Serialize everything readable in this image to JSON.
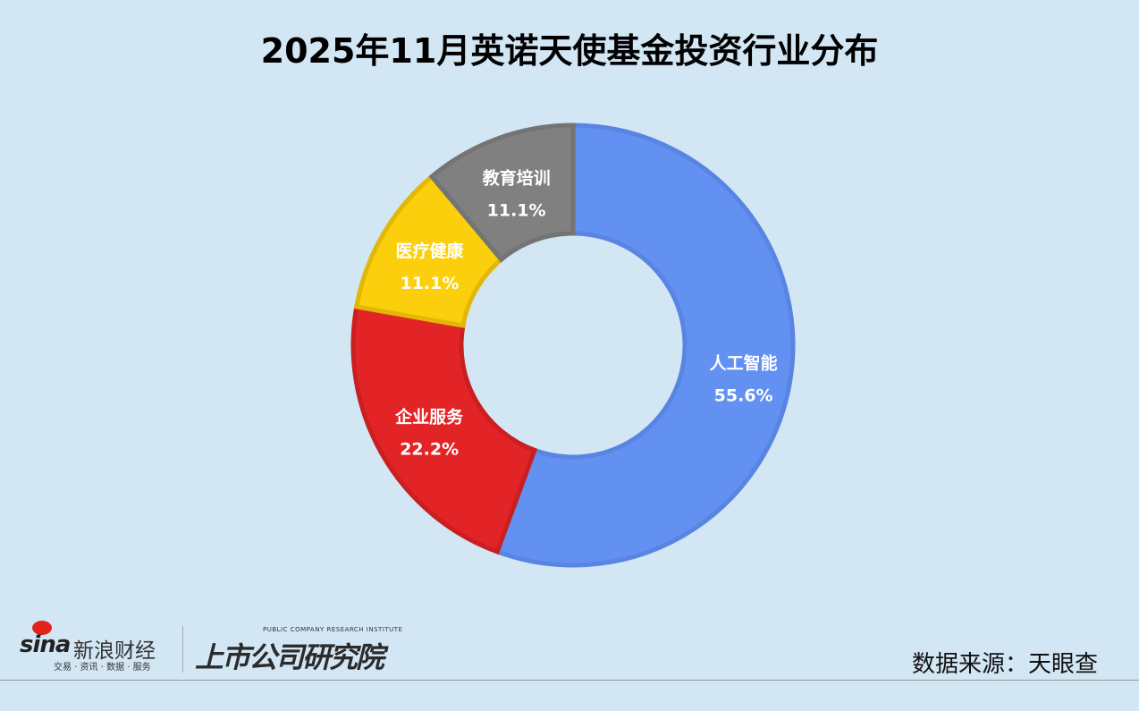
{
  "chart_data": {
    "type": "pie",
    "subtype": "donut",
    "title": "2025年11月英诺天使基金投资行业分布",
    "start": "top",
    "direction": "clockwise",
    "slices": [
      {
        "label": "人工智能",
        "value": 55.6,
        "display": "55.6%",
        "color": "#6291f2",
        "stroke": "#5985e2"
      },
      {
        "label": "企业服务",
        "value": 22.2,
        "display": "22.2%",
        "color": "#e32426",
        "stroke": "#c91f21"
      },
      {
        "label": "医疗健康",
        "value": 11.1,
        "display": "11.1%",
        "color": "#fbcf0b",
        "stroke": "#e2b806"
      },
      {
        "label": "教育培训",
        "value": 11.1,
        "display": "11.1%",
        "color": "#808080",
        "stroke": "#747474"
      }
    ]
  },
  "source": "数据来源：天眼查",
  "branding": {
    "sina_word": "sina",
    "sina_cn": "新浪财经",
    "sina_sub": "交易 · 资讯 · 数据 · 服务",
    "institute_en": "PUBLIC COMPANY RESEARCH INSTITUTE",
    "institute_cn": "上市公司研究院"
  }
}
